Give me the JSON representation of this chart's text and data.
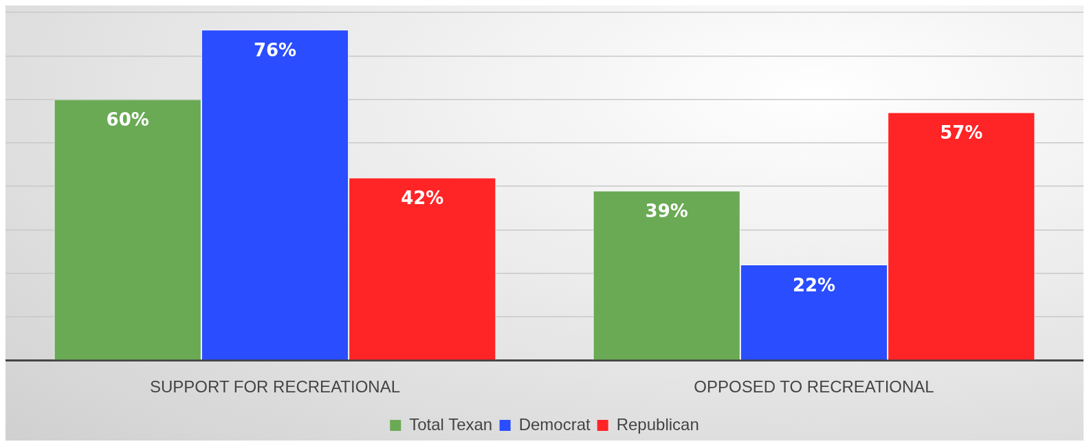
{
  "chart_data": {
    "type": "bar",
    "categories": [
      "SUPPORT FOR RECREATIONAL",
      "OPPOSED TO RECREATIONAL"
    ],
    "series": [
      {
        "name": "Total Texan",
        "color": "#6aaa55",
        "values": [
          60,
          39
        ],
        "value_labels": [
          "60%",
          "39%"
        ]
      },
      {
        "name": "Democrat",
        "color": "#2a4dff",
        "values": [
          76,
          22
        ],
        "value_labels": [
          "76%",
          "22%"
        ]
      },
      {
        "name": "Republican",
        "color": "#ff2426",
        "values": [
          42,
          57
        ],
        "value_labels": [
          "42%",
          "57%"
        ]
      }
    ],
    "ylim": [
      0,
      80
    ],
    "yticks": [
      0,
      10,
      20,
      30,
      40,
      50,
      60,
      70,
      80
    ],
    "grid": "y",
    "legend": "bottom",
    "tick_labels": "x"
  }
}
